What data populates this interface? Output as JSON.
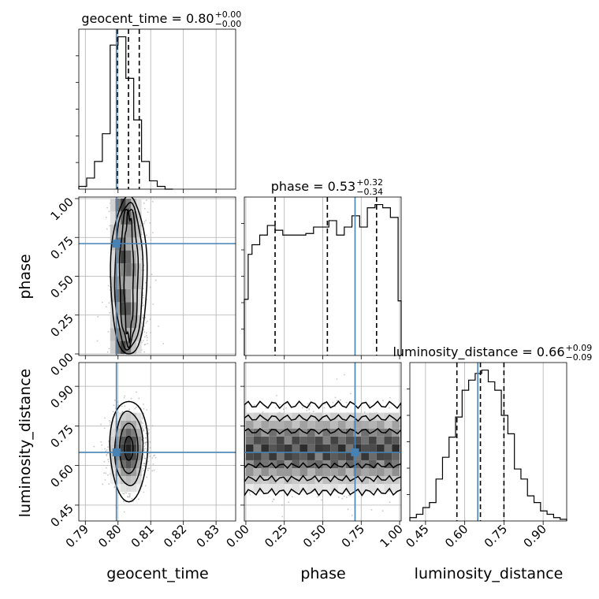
{
  "chart_data": {
    "type": "corner",
    "parameters": [
      "geocent_time",
      "phase",
      "luminosity_distance"
    ],
    "titles": [
      {
        "name": "geocent_time",
        "median": "0.80",
        "plus": "+0.00",
        "minus": "−0.00"
      },
      {
        "name": "phase",
        "median": "0.53",
        "plus": "+0.32",
        "minus": "−0.34"
      },
      {
        "name": "luminosity_distance",
        "median": "0.66",
        "plus": "+0.09",
        "minus": "−0.09"
      }
    ],
    "ranges": {
      "geocent_time": [
        0.788,
        0.836
      ],
      "phase": [
        -0.01,
        1.01
      ],
      "luminosity_distance": [
        0.39,
        0.99
      ]
    },
    "ticks": {
      "geocent_time": [
        "0.79",
        "0.80",
        "0.81",
        "0.82",
        "0.83"
      ],
      "phase": [
        "0.00",
        "0.25",
        "0.50",
        "0.75",
        "1.00"
      ],
      "luminosity_distance": [
        "0.45",
        "0.60",
        "0.75",
        "0.90"
      ]
    },
    "truths": {
      "geocent_time": 0.7995,
      "phase": 0.71,
      "luminosity_distance": 0.65
    },
    "quantiles": {
      "geocent_time": [
        0.7998,
        0.8032,
        0.8065
      ],
      "phase": [
        0.19,
        0.53,
        0.85
      ],
      "luminosity_distance": [
        0.57,
        0.66,
        0.75
      ]
    },
    "histograms": {
      "geocent_time": {
        "edges": [
          0.788,
          0.7904,
          0.7928,
          0.7952,
          0.7976,
          0.8,
          0.8024,
          0.8048,
          0.8072,
          0.8096,
          0.812,
          0.8144,
          0.8168
        ],
        "counts": [
          1,
          4,
          10,
          20,
          52,
          55,
          40,
          25,
          10,
          3,
          1,
          0
        ]
      },
      "phase": {
        "edges": [
          -0.01,
          0.015,
          0.04,
          0.09,
          0.14,
          0.19,
          0.24,
          0.29,
          0.34,
          0.39,
          0.44,
          0.49,
          0.54,
          0.59,
          0.64,
          0.69,
          0.74,
          0.79,
          0.84,
          0.89,
          0.94,
          0.99,
          1.01
        ],
        "counts": [
          0.35,
          0.63,
          0.69,
          0.75,
          0.81,
          0.78,
          0.75,
          0.75,
          0.75,
          0.76,
          0.8,
          0.8,
          0.84,
          0.75,
          0.8,
          0.87,
          0.8,
          0.92,
          0.94,
          0.92,
          0.86,
          0.34
        ]
      },
      "luminosity_distance": {
        "edges": [
          0.39,
          0.415,
          0.44,
          0.465,
          0.49,
          0.515,
          0.54,
          0.565,
          0.59,
          0.615,
          0.64,
          0.665,
          0.69,
          0.715,
          0.74,
          0.765,
          0.79,
          0.815,
          0.84,
          0.865,
          0.89,
          0.915,
          0.94,
          0.965,
          0.99
        ],
        "counts": [
          0.02,
          0.04,
          0.08,
          0.11,
          0.25,
          0.38,
          0.5,
          0.62,
          0.78,
          0.84,
          0.88,
          0.9,
          0.83,
          0.78,
          0.63,
          0.52,
          0.31,
          0.25,
          0.15,
          0.11,
          0.06,
          0.04,
          0.02,
          0.01
        ]
      }
    },
    "grid": true
  }
}
